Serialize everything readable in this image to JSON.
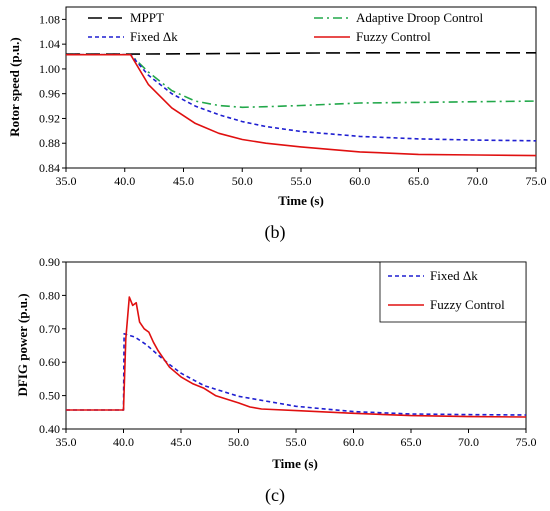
{
  "chart_data": [
    {
      "type": "line",
      "panel_label": "(b)",
      "title": "",
      "xlabel": "Time (s)",
      "ylabel": "Rotor speed (p.u.)",
      "xlim": [
        35.0,
        75.0
      ],
      "ylim": [
        0.84,
        1.1
      ],
      "xticks": [
        "35.0",
        "40.0",
        "45.0",
        "50.0",
        "55.0",
        "60.0",
        "65.0",
        "70.0",
        "75.0"
      ],
      "yticks": [
        "0.84",
        "0.88",
        "0.92",
        "0.96",
        "1.00",
        "1.04",
        "1.08"
      ],
      "grid": false,
      "legend": "top, inside plot",
      "series": [
        {
          "name": "MPPT",
          "color": "#000000",
          "dash": "long-dash",
          "points": [
            [
              35.0,
              1.024
            ],
            [
              40.0,
              1.024
            ],
            [
              45.0,
              1.0245
            ],
            [
              50.0,
              1.025
            ],
            [
              55.0,
              1.0255
            ],
            [
              60.0,
              1.026
            ],
            [
              65.0,
              1.026
            ],
            [
              70.0,
              1.026
            ],
            [
              75.0,
              1.026
            ]
          ]
        },
        {
          "name": "Adaptive Droop Control",
          "color": "#22a84a",
          "dash": "dash-dot",
          "points": [
            [
              35.0,
              1.023
            ],
            [
              40.5,
              1.023
            ],
            [
              42.0,
              0.995
            ],
            [
              44.0,
              0.965
            ],
            [
              46.0,
              0.948
            ],
            [
              48.0,
              0.941
            ],
            [
              50.0,
              0.938
            ],
            [
              52.0,
              0.939
            ],
            [
              55.0,
              0.941
            ],
            [
              60.0,
              0.945
            ],
            [
              65.0,
              0.946
            ],
            [
              70.0,
              0.947
            ],
            [
              75.0,
              0.948
            ]
          ]
        },
        {
          "name": "Fixed Δk",
          "color": "#1f1fd1",
          "dash": "short-dash",
          "points": [
            [
              35.0,
              1.023
            ],
            [
              40.5,
              1.023
            ],
            [
              42.0,
              0.99
            ],
            [
              44.0,
              0.96
            ],
            [
              46.0,
              0.94
            ],
            [
              48.0,
              0.926
            ],
            [
              50.0,
              0.915
            ],
            [
              52.0,
              0.907
            ],
            [
              55.0,
              0.899
            ],
            [
              60.0,
              0.891
            ],
            [
              65.0,
              0.887
            ],
            [
              70.0,
              0.885
            ],
            [
              75.0,
              0.884
            ]
          ]
        },
        {
          "name": "Fuzzy Control",
          "color": "#e01010",
          "dash": "solid",
          "points": [
            [
              35.0,
              1.023
            ],
            [
              40.5,
              1.023
            ],
            [
              42.0,
              0.975
            ],
            [
              44.0,
              0.937
            ],
            [
              46.0,
              0.912
            ],
            [
              48.0,
              0.896
            ],
            [
              50.0,
              0.886
            ],
            [
              52.0,
              0.88
            ],
            [
              55.0,
              0.874
            ],
            [
              60.0,
              0.866
            ],
            [
              65.0,
              0.862
            ],
            [
              70.0,
              0.861
            ],
            [
              75.0,
              0.86
            ]
          ]
        }
      ]
    },
    {
      "type": "line",
      "panel_label": "(c)",
      "title": "",
      "xlabel": "Time (s)",
      "ylabel": "DFIG  power (p.u.)",
      "xlim": [
        35.0,
        75.0
      ],
      "ylim": [
        0.4,
        0.9
      ],
      "xticks": [
        "35.0",
        "40.0",
        "45.0",
        "50.0",
        "55.0",
        "60.0",
        "65.0",
        "70.0",
        "75.0"
      ],
      "yticks": [
        "0.40",
        "0.50",
        "0.60",
        "0.70",
        "0.80",
        "0.90"
      ],
      "grid": false,
      "legend": "top-right, boxed",
      "series": [
        {
          "name": "Fixed Δk",
          "color": "#1f1fd1",
          "dash": "short-dash",
          "points": [
            [
              35.0,
              0.457
            ],
            [
              40.0,
              0.457
            ],
            [
              40.05,
              0.685
            ],
            [
              41.0,
              0.675
            ],
            [
              42.0,
              0.652
            ],
            [
              43.0,
              0.622
            ],
            [
              44.0,
              0.593
            ],
            [
              45.0,
              0.567
            ],
            [
              47.0,
              0.53
            ],
            [
              50.0,
              0.498
            ],
            [
              55.0,
              0.468
            ],
            [
              60.0,
              0.452
            ],
            [
              65.0,
              0.445
            ],
            [
              70.0,
              0.443
            ],
            [
              75.0,
              0.442
            ]
          ]
        },
        {
          "name": "Fuzzy Control",
          "color": "#e01010",
          "dash": "solid",
          "points": [
            [
              35.0,
              0.457
            ],
            [
              40.0,
              0.457
            ],
            [
              40.2,
              0.67
            ],
            [
              40.5,
              0.795
            ],
            [
              40.8,
              0.77
            ],
            [
              41.1,
              0.778
            ],
            [
              41.4,
              0.72
            ],
            [
              41.8,
              0.7
            ],
            [
              42.2,
              0.69
            ],
            [
              42.6,
              0.66
            ],
            [
              43.0,
              0.635
            ],
            [
              43.5,
              0.61
            ],
            [
              44.0,
              0.585
            ],
            [
              45.0,
              0.556
            ],
            [
              46.0,
              0.536
            ],
            [
              47.0,
              0.522
            ],
            [
              48.0,
              0.5
            ],
            [
              50.0,
              0.478
            ],
            [
              51.0,
              0.466
            ],
            [
              52.0,
              0.46
            ],
            [
              55.0,
              0.455
            ],
            [
              60.0,
              0.447
            ],
            [
              65.0,
              0.44
            ],
            [
              70.0,
              0.437
            ],
            [
              75.0,
              0.436
            ]
          ]
        }
      ]
    }
  ]
}
